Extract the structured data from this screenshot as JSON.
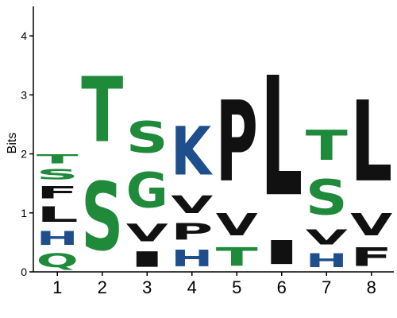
{
  "chart_data": {
    "type": "sequence-logo",
    "ylabel": "Bits",
    "ylim": [
      0,
      4.5
    ],
    "yticks": [
      0,
      1,
      2,
      3,
      4
    ],
    "colors": {
      "green": "#1e8a3a",
      "blue": "#1f4e8c",
      "black": "#111111"
    },
    "positions": [
      {
        "label": "1",
        "letters": [
          {
            "char": "Q",
            "height": 0.38,
            "color": "green"
          },
          {
            "char": "H",
            "height": 0.38,
            "color": "blue"
          },
          {
            "char": "L",
            "height": 0.42,
            "color": "black"
          },
          {
            "char": "F",
            "height": 0.33,
            "color": "black"
          },
          {
            "char": "S",
            "height": 0.28,
            "color": "green"
          },
          {
            "char": "T",
            "height": 0.25,
            "color": "green"
          }
        ]
      },
      {
        "label": "2",
        "letters": [
          {
            "char": "S",
            "height": 1.85,
            "color": "green"
          },
          {
            "char": "T",
            "height": 1.77,
            "color": "green"
          }
        ]
      },
      {
        "label": "3",
        "letters": [
          {
            "char": "I",
            "height": 0.42,
            "color": "black"
          },
          {
            "char": "V",
            "height": 0.48,
            "color": "black"
          },
          {
            "char": "G",
            "height": 0.95,
            "color": "green"
          },
          {
            "char": "S",
            "height": 0.85,
            "color": "green"
          }
        ]
      },
      {
        "label": "4",
        "letters": [
          {
            "char": "H",
            "height": 0.45,
            "color": "blue"
          },
          {
            "char": "P",
            "height": 0.45,
            "color": "black"
          },
          {
            "char": "V",
            "height": 0.48,
            "color": "black"
          },
          {
            "char": "K",
            "height": 1.32,
            "color": "blue"
          }
        ]
      },
      {
        "label": "5",
        "letters": [
          {
            "char": "T",
            "height": 0.5,
            "color": "green"
          },
          {
            "char": "V",
            "height": 0.6,
            "color": "black"
          },
          {
            "char": "P",
            "height": 2.2,
            "color": "black"
          }
        ]
      },
      {
        "label": "6",
        "letters": [
          {
            "char": "I",
            "height": 0.65,
            "color": "black"
          },
          {
            "char": "L",
            "height": 3.25,
            "color": "black"
          }
        ]
      },
      {
        "label": "7",
        "letters": [
          {
            "char": "H",
            "height": 0.38,
            "color": "blue"
          },
          {
            "char": "V",
            "height": 0.4,
            "color": "black"
          },
          {
            "char": "S",
            "height": 0.95,
            "color": "green"
          },
          {
            "char": "T",
            "height": 0.82,
            "color": "green"
          }
        ]
      },
      {
        "label": "8",
        "letters": [
          {
            "char": "F",
            "height": 0.5,
            "color": "black"
          },
          {
            "char": "V",
            "height": 0.6,
            "color": "black"
          },
          {
            "char": "L",
            "height": 2.2,
            "color": "black"
          }
        ]
      }
    ]
  }
}
